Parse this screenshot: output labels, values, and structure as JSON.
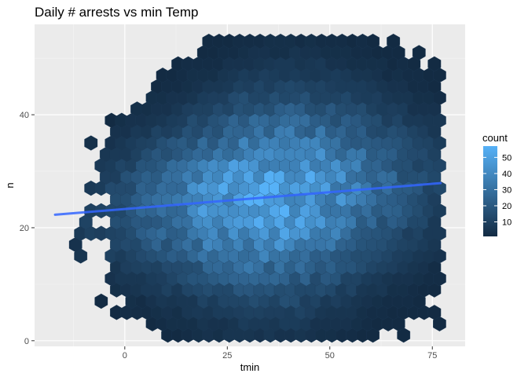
{
  "chart_data": {
    "type": "hexbin",
    "title": "Daily # arrests vs min Temp",
    "xlabel": "tmin",
    "ylabel": "n",
    "xlim": [
      -22,
      83
    ],
    "ylim": [
      -1,
      56
    ],
    "x_ticks": [
      0,
      25,
      50,
      75
    ],
    "y_ticks": [
      0,
      20,
      40
    ],
    "grid": true,
    "legend": {
      "title": "count",
      "position": "right",
      "ticks": [
        10,
        20,
        30,
        40,
        50
      ],
      "min": 1,
      "max": 57,
      "low_color": "#132B43",
      "high_color": "#56B1F7"
    },
    "trend_line": {
      "x": [
        -17,
        77
      ],
      "y": [
        22.3,
        27.9
      ],
      "color": "#3366FF"
    },
    "hex_grid": {
      "dx": 2.5,
      "dy": 2.0
    },
    "density": {
      "x_span": [
        -17,
        77
      ],
      "y_span": [
        1,
        54
      ],
      "peak_x": 35,
      "peak_y": 27,
      "peak_count": 55
    }
  }
}
